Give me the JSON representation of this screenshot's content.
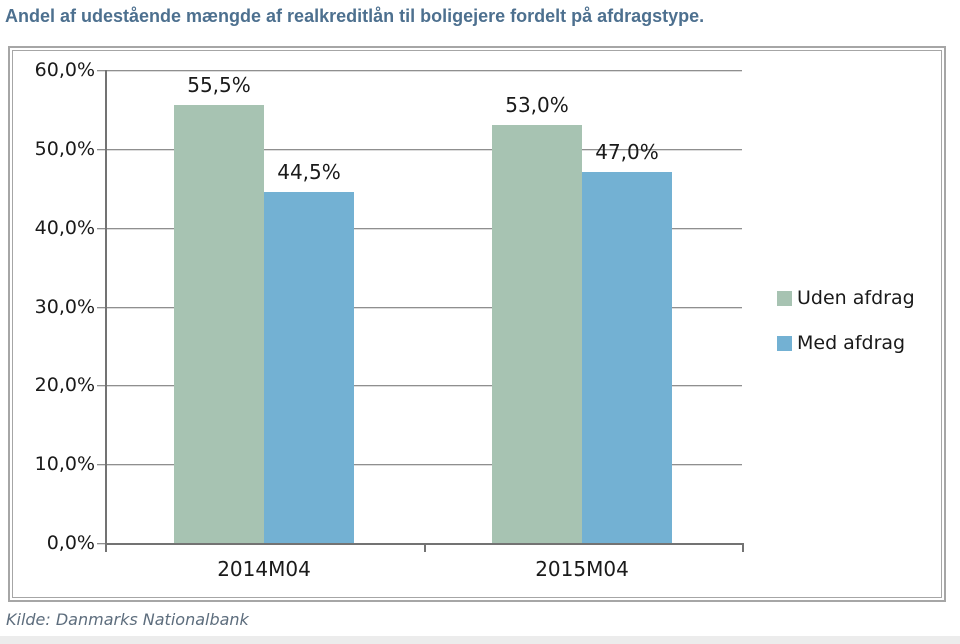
{
  "page": {
    "title": "Andel af udestående mængde af realkreditlån til boligejere fordelt på afdragstype.",
    "source": "Kilde: Danmarks Nationalbank"
  },
  "chart_data": {
    "type": "bar",
    "title": "Andel af udestående mængde af realkreditlån til boligejere fordelt på afdragstype.",
    "categories": [
      "2014M04",
      "2015M04"
    ],
    "series": [
      {
        "name": "Uden afdrag",
        "color": "#a7c3b2",
        "values": [
          55.5,
          53.0
        ],
        "labels": [
          "55,5%",
          "53,0%"
        ]
      },
      {
        "name": "Med afdrag",
        "color": "#73b1d3",
        "values": [
          44.5,
          47.0
        ],
        "labels": [
          "44,5%",
          "47,0%"
        ]
      }
    ],
    "y_axis": {
      "ticks": [
        "60,0%",
        "50,0%",
        "40,0%",
        "30,0%",
        "20,0%",
        "10,0%",
        "0,0%"
      ],
      "min": 0,
      "max": 60,
      "step": 10,
      "unit": "%"
    },
    "grid": true,
    "legend_position": "right",
    "source": "Kilde: Danmarks Nationalbank"
  }
}
